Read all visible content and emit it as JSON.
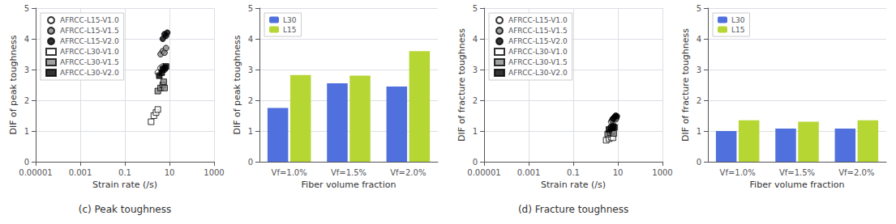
{
  "chart_data": [
    {
      "type": "scatter",
      "title": "(c) Peak toughness",
      "xlabel": "Strain rate (/s)",
      "ylabel": "DIF of peak toughness",
      "log": "x",
      "xlim": [
        1e-05,
        1000
      ],
      "xticks": [
        1e-05,
        0.001,
        0.1,
        10,
        1000
      ],
      "ylim": [
        0,
        5
      ],
      "yticks": [
        0,
        1,
        2,
        3,
        4,
        5
      ],
      "grid": true,
      "legend": "upper left",
      "series": [
        {
          "name": "AFRCC-L15-V1.0",
          "color": "white",
          "marker": "circle",
          "x": [
            3.0,
            4.0,
            5.0,
            6.0
          ],
          "values": [
            2.9,
            3.05,
            3.1,
            3.0
          ]
        },
        {
          "name": "AFRCC-L15-V1.5",
          "color": "#888888",
          "marker": "circle",
          "x": [
            4.0,
            5.0,
            6.0,
            7.0
          ],
          "values": [
            3.5,
            3.6,
            3.55,
            3.7
          ]
        },
        {
          "name": "AFRCC-L15-V2.0",
          "color": "black",
          "marker": "circle",
          "x": [
            5.0,
            6.0,
            7.0,
            8.0
          ],
          "values": [
            4.0,
            4.15,
            4.1,
            4.2
          ]
        },
        {
          "name": "AFRCC-L30-V1.0",
          "color": "white",
          "marker": "square",
          "x": [
            1.5,
            2.0,
            2.5,
            3.0
          ],
          "values": [
            1.3,
            1.5,
            1.6,
            1.7
          ]
        },
        {
          "name": "AFRCC-L30-V1.5",
          "color": "#888888",
          "marker": "square",
          "x": [
            3.0,
            4.0,
            5.0,
            5.5,
            6.0
          ],
          "values": [
            2.3,
            2.4,
            2.5,
            2.6,
            2.4
          ]
        },
        {
          "name": "AFRCC-L30-V2.0",
          "color": "black",
          "marker": "square",
          "x": [
            3.5,
            4.5,
            5.0,
            6.0,
            7.0
          ],
          "values": [
            2.8,
            2.9,
            3.0,
            3.05,
            3.1
          ]
        }
      ]
    },
    {
      "type": "bar",
      "xlabel": "Fiber volume fraction",
      "ylabel": "DIF of peak toughness",
      "categories": [
        "Vf=1.0%",
        "Vf=1.5%",
        "Vf=2.0%"
      ],
      "ylim": [
        0,
        5
      ],
      "yticks": [
        0,
        1,
        2,
        3,
        4,
        5
      ],
      "grid": "y",
      "legend": "upper left",
      "series": [
        {
          "name": "L30",
          "values": [
            1.75,
            2.55,
            2.45
          ]
        },
        {
          "name": "L15",
          "values": [
            2.82,
            2.8,
            3.6
          ]
        }
      ]
    },
    {
      "type": "scatter",
      "title": "(d) Fracture toughness",
      "xlabel": "Strain rate (/s)",
      "ylabel": "DIF of fracture toughness",
      "log": "x",
      "xlim": [
        1e-05,
        1000
      ],
      "xticks": [
        1e-05,
        0.001,
        0.1,
        10,
        1000
      ],
      "ylim": [
        0,
        5
      ],
      "yticks": [
        0,
        1,
        2,
        3,
        4,
        5
      ],
      "grid": true,
      "legend": "upper left",
      "series": [
        {
          "name": "AFRCC-L15-V1.0",
          "color": "white",
          "marker": "circle",
          "x": [
            5.0,
            6.0,
            7.0,
            8.0
          ],
          "values": [
            1.3,
            1.35,
            1.4,
            1.38
          ]
        },
        {
          "name": "AFRCC-L15-V1.5",
          "color": "#888888",
          "marker": "circle",
          "x": [
            5.5,
            6.5,
            7.5,
            8.5
          ],
          "values": [
            1.35,
            1.4,
            1.45,
            1.42
          ]
        },
        {
          "name": "AFRCC-L15-V2.0",
          "color": "black",
          "marker": "circle",
          "x": [
            6.0,
            7.0,
            8.0,
            9.0
          ],
          "values": [
            1.4,
            1.45,
            1.5,
            1.48
          ]
        },
        {
          "name": "AFRCC-L30-V1.0",
          "color": "white",
          "marker": "square",
          "x": [
            3.0,
            4.0,
            5.0,
            6.0
          ],
          "values": [
            0.7,
            0.75,
            0.8,
            0.78
          ]
        },
        {
          "name": "AFRCC-L30-V1.5",
          "color": "#888888",
          "marker": "square",
          "x": [
            3.5,
            4.5,
            5.5,
            6.5
          ],
          "values": [
            0.9,
            0.95,
            1.0,
            0.92
          ]
        },
        {
          "name": "AFRCC-L30-V2.0",
          "color": "black",
          "marker": "square",
          "x": [
            4.0,
            5.0,
            6.0,
            7.0
          ],
          "values": [
            1.05,
            1.1,
            1.15,
            1.12
          ]
        }
      ]
    },
    {
      "type": "bar",
      "xlabel": "Fiber volume fraction",
      "ylabel": "DIF of fracture toughness",
      "categories": [
        "Vf=1.0%",
        "Vf=1.5%",
        "Vf=2.0%"
      ],
      "ylim": [
        0,
        5
      ],
      "yticks": [
        0,
        1,
        2,
        3,
        4,
        5
      ],
      "grid": "y",
      "legend": "upper left",
      "series": [
        {
          "name": "L30",
          "values": [
            1.0,
            1.08,
            1.08
          ]
        },
        {
          "name": "L15",
          "values": [
            1.35,
            1.3,
            1.35
          ]
        }
      ]
    }
  ]
}
